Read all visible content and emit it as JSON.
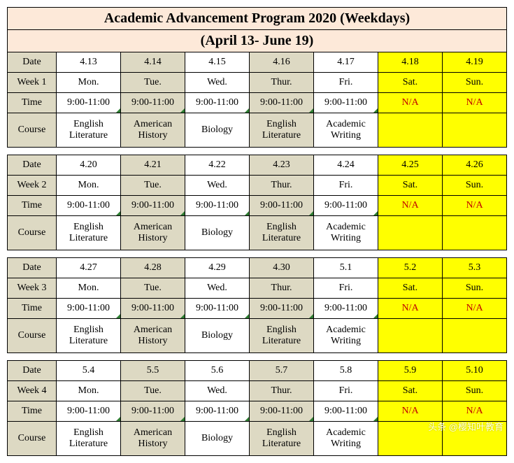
{
  "title": "Academic Advancement Program 2020 (Weekdays)",
  "subtitle": "(April 13- June 19)",
  "row_labels": {
    "date": "Date",
    "week": "Week",
    "time": "Time",
    "course": "Course"
  },
  "weeks": [
    {
      "num": "1",
      "days": [
        {
          "date": "4.13",
          "dow": "Mon.",
          "time": "9:00-11:00",
          "course": "English Literature",
          "shade": "white"
        },
        {
          "date": "4.14",
          "dow": "Tue.",
          "time": "9:00-11:00",
          "course": "American History",
          "shade": "gray"
        },
        {
          "date": "4.15",
          "dow": "Wed.",
          "time": "9:00-11:00",
          "course": "Biology",
          "shade": "white"
        },
        {
          "date": "4.16",
          "dow": "Thur.",
          "time": "9:00-11:00",
          "course": "English Literature",
          "shade": "gray"
        },
        {
          "date": "4.17",
          "dow": "Fri.",
          "time": "9:00-11:00",
          "course": "Academic Writing",
          "shade": "white"
        },
        {
          "date": "4.18",
          "dow": "Sat.",
          "time": "N/A",
          "course": "",
          "shade": "yellow"
        },
        {
          "date": "4.19",
          "dow": "Sun.",
          "time": "N/A",
          "course": "",
          "shade": "yellow"
        }
      ]
    },
    {
      "num": "2",
      "days": [
        {
          "date": "4.20",
          "dow": "Mon.",
          "time": "9:00-11:00",
          "course": "English Literature",
          "shade": "white"
        },
        {
          "date": "4.21",
          "dow": "Tue.",
          "time": "9:00-11:00",
          "course": "American History",
          "shade": "gray"
        },
        {
          "date": "4.22",
          "dow": "Wed.",
          "time": "9:00-11:00",
          "course": "Biology",
          "shade": "white"
        },
        {
          "date": "4.23",
          "dow": "Thur.",
          "time": "9:00-11:00",
          "course": "English Literature",
          "shade": "gray"
        },
        {
          "date": "4.24",
          "dow": "Fri.",
          "time": "9:00-11:00",
          "course": "Academic Writing",
          "shade": "white"
        },
        {
          "date": "4.25",
          "dow": "Sat.",
          "time": "N/A",
          "course": "",
          "shade": "yellow"
        },
        {
          "date": "4.26",
          "dow": "Sun.",
          "time": "N/A",
          "course": "",
          "shade": "yellow"
        }
      ]
    },
    {
      "num": "3",
      "days": [
        {
          "date": "4.27",
          "dow": "Mon.",
          "time": "9:00-11:00",
          "course": "English Literature",
          "shade": "white"
        },
        {
          "date": "4.28",
          "dow": "Tue.",
          "time": "9:00-11:00",
          "course": "American History",
          "shade": "gray"
        },
        {
          "date": "4.29",
          "dow": "Wed.",
          "time": "9:00-11:00",
          "course": "Biology",
          "shade": "white"
        },
        {
          "date": "4.30",
          "dow": "Thur.",
          "time": "9:00-11:00",
          "course": "English Literature",
          "shade": "gray"
        },
        {
          "date": "5.1",
          "dow": "Fri.",
          "time": "9:00-11:00",
          "course": "Academic Writing",
          "shade": "white"
        },
        {
          "date": "5.2",
          "dow": "Sat.",
          "time": "N/A",
          "course": "",
          "shade": "yellow"
        },
        {
          "date": "5.3",
          "dow": "Sun.",
          "time": "N/A",
          "course": "",
          "shade": "yellow"
        }
      ]
    },
    {
      "num": "4",
      "days": [
        {
          "date": "5.4",
          "dow": "Mon.",
          "time": "9:00-11:00",
          "course": "English Literature",
          "shade": "white"
        },
        {
          "date": "5.5",
          "dow": "Tue.",
          "time": "9:00-11:00",
          "course": "American History",
          "shade": "gray"
        },
        {
          "date": "5.6",
          "dow": "Wed.",
          "time": "9:00-11:00",
          "course": "Biology",
          "shade": "white"
        },
        {
          "date": "5.7",
          "dow": "Thur.",
          "time": "9:00-11:00",
          "course": "English Literature",
          "shade": "gray"
        },
        {
          "date": "5.8",
          "dow": "Fri.",
          "time": "9:00-11:00",
          "course": "Academic Writing",
          "shade": "white"
        },
        {
          "date": "5.9",
          "dow": "Sat.",
          "time": "N/A",
          "course": "",
          "shade": "yellow"
        },
        {
          "date": "5.10",
          "dow": "Sun.",
          "time": "N/A",
          "course": "",
          "shade": "yellow"
        }
      ]
    }
  ],
  "colors": {
    "header_bg": "#fde9d9",
    "gray": "#ddd9c3",
    "yellow": "#ffff00",
    "na_text": "#c00000",
    "corner": "#2e7d32"
  },
  "watermark": "头条 @樱知叶教育"
}
